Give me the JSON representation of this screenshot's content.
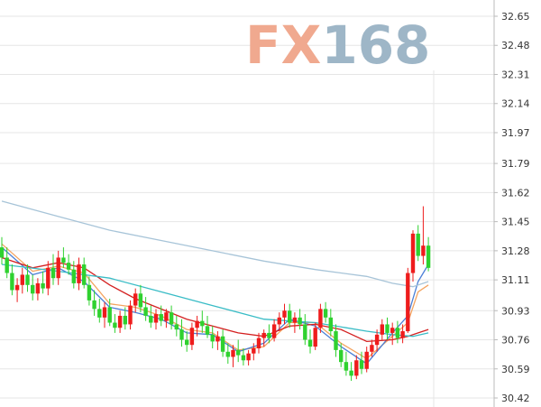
{
  "watermark": {
    "part1": "FX",
    "part2": "168",
    "color1": "#f0a98f",
    "color2": "#9eb6c7"
  },
  "colors": {
    "up": "#ee1c1c",
    "down": "#2fd12f",
    "grid": "#e6e6e6",
    "ma_orange": "#f4a460",
    "ma_blue": "#4a7fd6",
    "ma_red": "#d42020",
    "ma_teal": "#39bcc6",
    "ma_lightblue": "#a7c4d8"
  },
  "chart_data": {
    "type": "candlestick",
    "title": "",
    "xlabel": "",
    "ylabel": "",
    "ylim": [
      30.42,
      32.65
    ],
    "y_ticks": [
      "32.65",
      "32.48",
      "32.31",
      "32.14",
      "31.97",
      "31.79",
      "31.62",
      "31.45",
      "31.28",
      "31.11",
      "30.93",
      "30.76",
      "30.59",
      "30.42"
    ],
    "axis_position": "right",
    "grid": true,
    "legend": "none",
    "ohlc": [
      [
        31.3,
        31.36,
        31.2,
        31.24
      ],
      [
        31.24,
        31.3,
        31.12,
        31.15
      ],
      [
        31.15,
        31.2,
        31.02,
        31.05
      ],
      [
        31.05,
        31.12,
        30.98,
        31.08
      ],
      [
        31.08,
        31.18,
        31.03,
        31.14
      ],
      [
        31.14,
        31.2,
        31.04,
        31.08
      ],
      [
        31.08,
        31.14,
        30.99,
        31.03
      ],
      [
        31.03,
        31.12,
        30.99,
        31.09
      ],
      [
        31.09,
        31.16,
        31.03,
        31.06
      ],
      [
        31.06,
        31.22,
        31.02,
        31.18
      ],
      [
        31.18,
        31.26,
        31.08,
        31.12
      ],
      [
        31.12,
        31.28,
        31.08,
        31.24
      ],
      [
        31.24,
        31.3,
        31.18,
        31.21
      ],
      [
        31.21,
        31.26,
        31.14,
        31.17
      ],
      [
        31.17,
        31.22,
        31.06,
        31.09
      ],
      [
        31.09,
        31.24,
        31.05,
        31.2
      ],
      [
        31.2,
        31.24,
        31.06,
        31.08
      ],
      [
        31.08,
        31.13,
        30.96,
        30.99
      ],
      [
        30.99,
        31.05,
        30.9,
        30.94
      ],
      [
        30.94,
        31.0,
        30.86,
        30.89
      ],
      [
        30.89,
        30.98,
        30.83,
        30.95
      ],
      [
        30.95,
        31.0,
        30.84,
        30.86
      ],
      [
        30.86,
        30.91,
        30.8,
        30.83
      ],
      [
        30.83,
        30.93,
        30.8,
        30.9
      ],
      [
        30.9,
        30.95,
        30.82,
        30.85
      ],
      [
        30.85,
        30.99,
        30.82,
        30.96
      ],
      [
        30.96,
        31.06,
        30.92,
        31.03
      ],
      [
        31.03,
        31.08,
        30.92,
        30.95
      ],
      [
        30.95,
        31.01,
        30.87,
        30.9
      ],
      [
        30.9,
        30.96,
        30.83,
        30.86
      ],
      [
        30.86,
        30.94,
        30.82,
        30.91
      ],
      [
        30.91,
        30.96,
        30.84,
        30.87
      ],
      [
        30.87,
        30.94,
        30.83,
        30.92
      ],
      [
        30.92,
        30.96,
        30.82,
        30.85
      ],
      [
        30.85,
        30.9,
        30.78,
        30.82
      ],
      [
        30.82,
        30.88,
        30.72,
        30.76
      ],
      [
        30.76,
        30.81,
        30.69,
        30.73
      ],
      [
        30.73,
        30.86,
        30.7,
        30.83
      ],
      [
        30.83,
        30.9,
        30.78,
        30.87
      ],
      [
        30.87,
        30.93,
        30.8,
        30.84
      ],
      [
        30.84,
        30.9,
        30.77,
        30.79
      ],
      [
        30.79,
        30.84,
        30.71,
        30.75
      ],
      [
        30.75,
        30.81,
        30.7,
        30.78
      ],
      [
        30.78,
        30.82,
        30.66,
        30.69
      ],
      [
        30.69,
        30.74,
        30.62,
        30.66
      ],
      [
        30.66,
        30.73,
        30.6,
        30.7
      ],
      [
        30.7,
        30.76,
        30.63,
        30.67
      ],
      [
        30.67,
        30.71,
        30.61,
        30.64
      ],
      [
        30.64,
        30.7,
        30.61,
        30.68
      ],
      [
        30.68,
        30.74,
        30.64,
        30.71
      ],
      [
        30.71,
        30.8,
        30.68,
        30.77
      ],
      [
        30.77,
        30.82,
        30.72,
        30.8
      ],
      [
        30.8,
        30.85,
        30.74,
        30.77
      ],
      [
        30.77,
        30.88,
        30.75,
        30.85
      ],
      [
        30.85,
        30.92,
        30.81,
        30.89
      ],
      [
        30.89,
        30.97,
        30.85,
        30.93
      ],
      [
        30.93,
        30.97,
        30.83,
        30.86
      ],
      [
        30.86,
        30.92,
        30.8,
        30.89
      ],
      [
        30.89,
        30.94,
        30.82,
        30.85
      ],
      [
        30.85,
        30.91,
        30.73,
        30.76
      ],
      [
        30.76,
        30.82,
        30.68,
        30.72
      ],
      [
        30.72,
        30.86,
        30.7,
        30.83
      ],
      [
        30.83,
        30.97,
        30.8,
        30.94
      ],
      [
        30.94,
        30.98,
        30.86,
        30.89
      ],
      [
        30.89,
        30.94,
        30.78,
        30.81
      ],
      [
        30.81,
        30.85,
        30.66,
        30.7
      ],
      [
        30.7,
        30.74,
        30.6,
        30.63
      ],
      [
        30.63,
        30.69,
        30.55,
        30.58
      ],
      [
        30.58,
        30.63,
        30.52,
        30.55
      ],
      [
        30.55,
        30.67,
        30.53,
        30.64
      ],
      [
        30.64,
        30.69,
        30.56,
        30.59
      ],
      [
        30.59,
        30.72,
        30.57,
        30.69
      ],
      [
        30.69,
        30.76,
        30.66,
        30.73
      ],
      [
        30.73,
        30.82,
        30.69,
        30.79
      ],
      [
        30.79,
        30.88,
        30.76,
        30.85
      ],
      [
        30.85,
        30.89,
        30.76,
        30.8
      ],
      [
        30.8,
        30.86,
        30.73,
        30.83
      ],
      [
        30.83,
        30.87,
        30.74,
        30.77
      ],
      [
        30.77,
        30.85,
        30.74,
        30.81
      ],
      [
        30.81,
        31.18,
        30.8,
        31.15
      ],
      [
        31.15,
        31.4,
        31.1,
        31.38
      ],
      [
        31.38,
        31.43,
        31.22,
        31.25
      ],
      [
        31.25,
        31.54,
        31.2,
        31.31
      ],
      [
        31.31,
        31.36,
        31.16,
        31.18
      ]
    ],
    "moving_averages": [
      {
        "color_key": "ma_orange",
        "values": [
          [
            0,
            31.32
          ],
          [
            6,
            31.16
          ],
          [
            11,
            31.19
          ],
          [
            16,
            31.15
          ],
          [
            21,
            30.97
          ],
          [
            26,
            30.95
          ],
          [
            31,
            30.9
          ],
          [
            36,
            30.82
          ],
          [
            41,
            30.8
          ],
          [
            46,
            30.7
          ],
          [
            51,
            30.72
          ],
          [
            56,
            30.86
          ],
          [
            61,
            30.86
          ],
          [
            66,
            30.74
          ],
          [
            71,
            30.65
          ],
          [
            76,
            30.78
          ],
          [
            79,
            30.86
          ],
          [
            81,
            31.04
          ],
          [
            83,
            31.08
          ]
        ]
      },
      {
        "color_key": "ma_blue",
        "values": [
          [
            0,
            31.3
          ],
          [
            6,
            31.14
          ],
          [
            11,
            31.18
          ],
          [
            16,
            31.1
          ],
          [
            21,
            30.95
          ],
          [
            26,
            30.92
          ],
          [
            31,
            30.88
          ],
          [
            36,
            30.8
          ],
          [
            41,
            30.79
          ],
          [
            46,
            30.69
          ],
          [
            51,
            30.74
          ],
          [
            56,
            30.88
          ],
          [
            61,
            30.84
          ],
          [
            66,
            30.72
          ],
          [
            71,
            30.62
          ],
          [
            76,
            30.8
          ],
          [
            79,
            30.9
          ],
          [
            81,
            31.1
          ],
          [
            83,
            31.2
          ]
        ]
      },
      {
        "color_key": "ma_red",
        "values": [
          [
            0,
            31.24
          ],
          [
            6,
            31.18
          ],
          [
            11,
            31.21
          ],
          [
            16,
            31.18
          ],
          [
            21,
            31.08
          ],
          [
            26,
            31.0
          ],
          [
            31,
            30.94
          ],
          [
            36,
            30.88
          ],
          [
            41,
            30.84
          ],
          [
            46,
            30.8
          ],
          [
            51,
            30.78
          ],
          [
            56,
            30.84
          ],
          [
            61,
            30.85
          ],
          [
            66,
            30.82
          ],
          [
            71,
            30.75
          ],
          [
            76,
            30.76
          ],
          [
            79,
            30.78
          ],
          [
            81,
            30.8
          ],
          [
            83,
            30.82
          ]
        ]
      },
      {
        "color_key": "ma_teal",
        "values": [
          [
            0,
            31.2
          ],
          [
            11,
            31.16
          ],
          [
            21,
            31.12
          ],
          [
            31,
            31.04
          ],
          [
            41,
            30.96
          ],
          [
            51,
            30.88
          ],
          [
            61,
            30.86
          ],
          [
            71,
            30.81
          ],
          [
            76,
            30.79
          ],
          [
            80,
            30.78
          ],
          [
            83,
            30.8
          ]
        ]
      },
      {
        "color_key": "ma_lightblue",
        "values": [
          [
            0,
            31.57
          ],
          [
            11,
            31.48
          ],
          [
            21,
            31.4
          ],
          [
            31,
            31.34
          ],
          [
            41,
            31.28
          ],
          [
            51,
            31.22
          ],
          [
            61,
            31.17
          ],
          [
            71,
            31.13
          ],
          [
            76,
            31.09
          ],
          [
            80,
            31.07
          ],
          [
            83,
            31.1
          ]
        ]
      }
    ]
  }
}
